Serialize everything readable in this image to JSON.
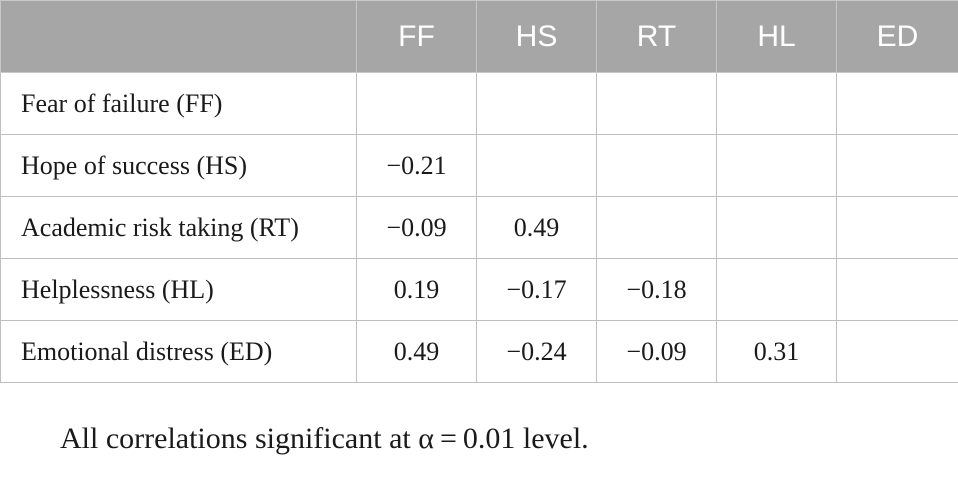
{
  "table": {
    "columns": [
      "",
      "FF",
      "HS",
      "RT",
      "HL",
      "ED"
    ],
    "rows": [
      {
        "label": "Fear of failure (FF)",
        "values": [
          "",
          "",
          "",
          "",
          ""
        ]
      },
      {
        "label": "Hope of success (HS)",
        "values": [
          "−0.21",
          "",
          "",
          "",
          ""
        ]
      },
      {
        "label": "Academic risk taking (RT)",
        "values": [
          "−0.09",
          "0.49",
          "",
          "",
          ""
        ]
      },
      {
        "label": "Helplessness (HL)",
        "values": [
          "0.19",
          "−0.17",
          "−0.18",
          "",
          ""
        ]
      },
      {
        "label": "Emotional distress (ED)",
        "values": [
          "0.49",
          "−0.24",
          "−0.09",
          "0.31",
          ""
        ]
      }
    ]
  },
  "note": "All correlations significant at α = 0.01 level.",
  "colors": {
    "header_background": "#a6a6a6",
    "header_text": "#ffffff",
    "grid_lines": "#bfbfbf",
    "body_text": "#1a1a1a"
  }
}
